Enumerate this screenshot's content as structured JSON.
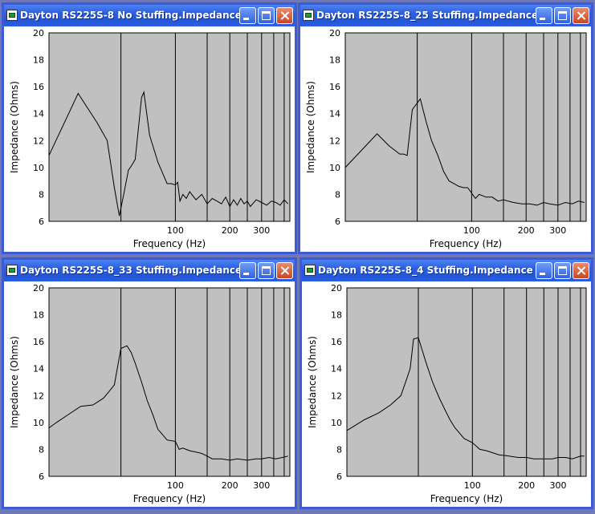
{
  "windows": [
    {
      "title": "Dayton RS225S-8 No Stuffing.Impedance ...",
      "chart_data": {
        "type": "line",
        "xlabel": "Frequency (Hz)",
        "ylabel": "Impedance (Ohms)",
        "x_scale": "log",
        "xlim": [
          20,
          430
        ],
        "ylim": [
          6,
          20
        ],
        "y_ticks": [
          20,
          18,
          16,
          14,
          12,
          10,
          8,
          6
        ],
        "x_tick_labels": [
          {
            "value": 100,
            "label": "100"
          },
          {
            "value": 200,
            "label": "200"
          },
          {
            "value": 300,
            "label": "300"
          }
        ],
        "x_gridlines": [
          50,
          100,
          150,
          200,
          250,
          300,
          350,
          400
        ],
        "grid": true,
        "series": [
          {
            "x": [
              20,
              29,
              37,
              42,
              46,
              49,
              52,
              55,
              57,
              60,
              65,
              67,
              72,
              80,
              90,
              95,
              100,
              103,
              106,
              110,
              115,
              120,
              130,
              140,
              150,
              160,
              170,
              180,
              190,
              200,
              210,
              220,
              230,
              240,
              250,
              260,
              280,
              300,
              320,
              340,
              360,
              380,
              400,
              420
            ],
            "y": [
              10.9,
              15.5,
              13.3,
              12.0,
              8.5,
              6.4,
              8.1,
              9.8,
              10.1,
              10.6,
              15.2,
              15.6,
              12.4,
              10.4,
              8.8,
              8.8,
              8.7,
              8.9,
              7.5,
              8.0,
              7.7,
              8.2,
              7.6,
              8.0,
              7.3,
              7.7,
              7.5,
              7.3,
              7.8,
              7.1,
              7.6,
              7.2,
              7.7,
              7.3,
              7.5,
              7.1,
              7.6,
              7.4,
              7.2,
              7.5,
              7.4,
              7.2,
              7.6,
              7.3
            ]
          }
        ]
      }
    },
    {
      "title": "Dayton RS225S-8_25 Stuffing.Impedance ...",
      "chart_data": {
        "type": "line",
        "xlabel": "Frequency (Hz)",
        "ylabel": "Impedance (Ohms)",
        "x_scale": "log",
        "xlim": [
          20,
          430
        ],
        "ylim": [
          6,
          20
        ],
        "y_ticks": [
          20,
          18,
          16,
          14,
          12,
          10,
          8,
          6
        ],
        "x_tick_labels": [
          {
            "value": 100,
            "label": "100"
          },
          {
            "value": 200,
            "label": "200"
          },
          {
            "value": 300,
            "label": "300"
          }
        ],
        "x_gridlines": [
          50,
          100,
          150,
          200,
          250,
          300,
          350,
          400
        ],
        "grid": true,
        "series": [
          {
            "x": [
              20,
              30,
              35,
              40,
              42,
              44,
              47,
              52,
              56,
              60,
              65,
              70,
              75,
              85,
              90,
              95,
              100,
              105,
              110,
              120,
              130,
              140,
              150,
              170,
              190,
              210,
              230,
              250,
              270,
              300,
              330,
              360,
              390,
              420
            ],
            "y": [
              10.0,
              12.5,
              11.6,
              11.0,
              11.0,
              10.9,
              14.3,
              15.1,
              13.4,
              12.0,
              10.9,
              9.7,
              9.0,
              8.6,
              8.5,
              8.5,
              8.1,
              7.7,
              8.0,
              7.8,
              7.8,
              7.5,
              7.6,
              7.4,
              7.3,
              7.3,
              7.2,
              7.4,
              7.3,
              7.2,
              7.4,
              7.3,
              7.5,
              7.4
            ]
          }
        ]
      }
    },
    {
      "title": "Dayton RS225S-8_33 Stuffing.Impedance ...",
      "chart_data": {
        "type": "line",
        "xlabel": "Frequency (Hz)",
        "ylabel": "Impedance (Ohms)",
        "x_scale": "log",
        "xlim": [
          20,
          430
        ],
        "ylim": [
          6,
          20
        ],
        "y_ticks": [
          20,
          18,
          16,
          14,
          12,
          10,
          8,
          6
        ],
        "x_tick_labels": [
          {
            "value": 100,
            "label": "100"
          },
          {
            "value": 200,
            "label": "200"
          },
          {
            "value": 300,
            "label": "300"
          }
        ],
        "x_gridlines": [
          50,
          100,
          150,
          200,
          250,
          300,
          350,
          400
        ],
        "grid": true,
        "series": [
          {
            "x": [
              20,
              22,
              25,
              30,
              35,
              40,
              43,
              46,
              50,
              54,
              57,
              60,
              65,
              70,
              75,
              80,
              90,
              100,
              105,
              110,
              120,
              130,
              140,
              150,
              160,
              180,
              200,
              220,
              250,
              280,
              300,
              330,
              360,
              390,
              420
            ],
            "y": [
              9.6,
              10.0,
              10.5,
              11.2,
              11.3,
              11.8,
              12.3,
              12.8,
              15.5,
              15.7,
              15.2,
              14.4,
              13.0,
              11.6,
              10.6,
              9.5,
              8.7,
              8.6,
              8.0,
              8.1,
              7.9,
              7.8,
              7.7,
              7.5,
              7.3,
              7.3,
              7.2,
              7.3,
              7.2,
              7.3,
              7.3,
              7.4,
              7.3,
              7.4,
              7.5
            ]
          }
        ]
      }
    },
    {
      "title": "Dayton RS225S-8_4 Stuffing.Impedance ...",
      "chart_data": {
        "type": "line",
        "xlabel": "Frequency (Hz)",
        "ylabel": "Impedance (Ohms)",
        "x_scale": "log",
        "xlim": [
          20,
          430
        ],
        "ylim": [
          6,
          20
        ],
        "y_ticks": [
          20,
          18,
          16,
          14,
          12,
          10,
          8,
          6
        ],
        "x_tick_labels": [
          {
            "value": 100,
            "label": "100"
          },
          {
            "value": 200,
            "label": "200"
          },
          {
            "value": 300,
            "label": "300"
          }
        ],
        "x_gridlines": [
          50,
          100,
          150,
          200,
          250,
          300,
          350,
          400
        ],
        "grid": true,
        "series": [
          {
            "x": [
              20,
              25,
              30,
              35,
              40,
              43,
              45,
              47,
              50,
              55,
              60,
              65,
              70,
              75,
              80,
              90,
              100,
              110,
              120,
              140,
              160,
              180,
              200,
              220,
              250,
              280,
              300,
              330,
              360,
              400,
              420
            ],
            "y": [
              9.4,
              10.2,
              10.7,
              11.3,
              12.0,
              13.2,
              14.0,
              16.2,
              16.3,
              14.5,
              13.0,
              11.9,
              11.0,
              10.2,
              9.6,
              8.8,
              8.5,
              8.0,
              7.9,
              7.6,
              7.5,
              7.4,
              7.4,
              7.3,
              7.3,
              7.3,
              7.4,
              7.4,
              7.3,
              7.5,
              7.5
            ]
          }
        ]
      }
    }
  ]
}
